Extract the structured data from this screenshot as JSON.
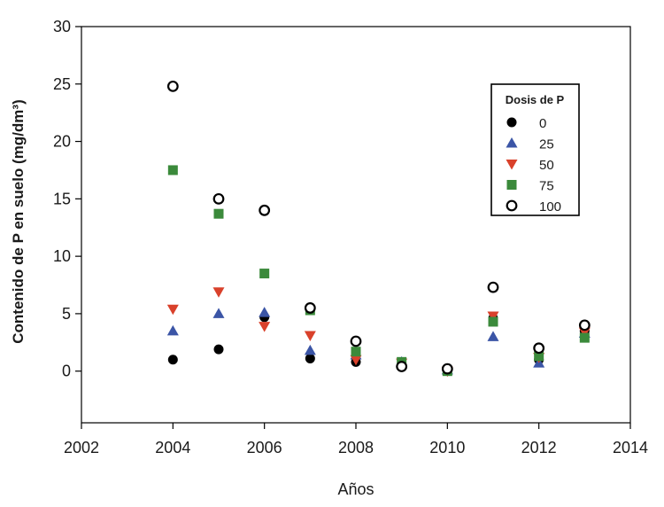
{
  "chart_data": {
    "type": "scatter",
    "title": "",
    "xlabel": "Años",
    "ylabel": "Contenido de P en suelo (mg/dm³)",
    "xlim": [
      2002,
      2014
    ],
    "ylim": [
      -4.5,
      30
    ],
    "xticks": [
      "2002",
      "2004",
      "2006",
      "2008",
      "2010",
      "2012",
      "2014"
    ],
    "yticks": [
      "0",
      "5",
      "10",
      "15",
      "20",
      "25",
      "30"
    ],
    "grid": false,
    "legend": {
      "title": "Dosis de P",
      "position": "right"
    },
    "series": [
      {
        "name": "0",
        "marker": "circle",
        "color": "#000000",
        "points": [
          [
            2004,
            1.0
          ],
          [
            2005,
            1.9
          ],
          [
            2006,
            4.7
          ],
          [
            2007,
            1.1
          ],
          [
            2008,
            0.8
          ],
          [
            2009,
            0.5
          ],
          [
            2010,
            0.1
          ],
          [
            2011,
            4.6
          ],
          [
            2012,
            1.0
          ],
          [
            2013,
            3.5
          ]
        ]
      },
      {
        "name": "25",
        "marker": "triangle-up",
        "color": "#3b55a6",
        "points": [
          [
            2004,
            3.5
          ],
          [
            2005,
            5.0
          ],
          [
            2006,
            5.1
          ],
          [
            2007,
            1.8
          ],
          [
            2008,
            1.4
          ],
          [
            2009,
            0.8
          ],
          [
            2010,
            0.1
          ],
          [
            2011,
            3.0
          ],
          [
            2012,
            0.7
          ],
          [
            2013,
            3.3
          ]
        ]
      },
      {
        "name": "50",
        "marker": "triangle-down",
        "color": "#d9412b",
        "points": [
          [
            2004,
            5.4
          ],
          [
            2005,
            6.9
          ],
          [
            2006,
            3.9
          ],
          [
            2007,
            3.1
          ],
          [
            2008,
            1.0
          ],
          [
            2009,
            0.7
          ],
          [
            2010,
            0.0
          ],
          [
            2011,
            4.8
          ],
          [
            2012,
            1.2
          ],
          [
            2013,
            3.4
          ]
        ]
      },
      {
        "name": "75",
        "marker": "square",
        "color": "#3b8a3b",
        "points": [
          [
            2004,
            17.5
          ],
          [
            2005,
            13.7
          ],
          [
            2006,
            8.5
          ],
          [
            2007,
            5.3
          ],
          [
            2008,
            1.7
          ],
          [
            2009,
            0.8
          ],
          [
            2010,
            0.0
          ],
          [
            2011,
            4.3
          ],
          [
            2012,
            1.3
          ],
          [
            2013,
            2.9
          ]
        ]
      },
      {
        "name": "100",
        "marker": "open-circle",
        "color": "#000000",
        "points": [
          [
            2004,
            24.8
          ],
          [
            2005,
            15.0
          ],
          [
            2006,
            14.0
          ],
          [
            2007,
            5.5
          ],
          [
            2008,
            2.6
          ],
          [
            2009,
            0.4
          ],
          [
            2010,
            0.2
          ],
          [
            2011,
            7.3
          ],
          [
            2012,
            2.0
          ],
          [
            2013,
            4.0
          ]
        ]
      }
    ]
  }
}
